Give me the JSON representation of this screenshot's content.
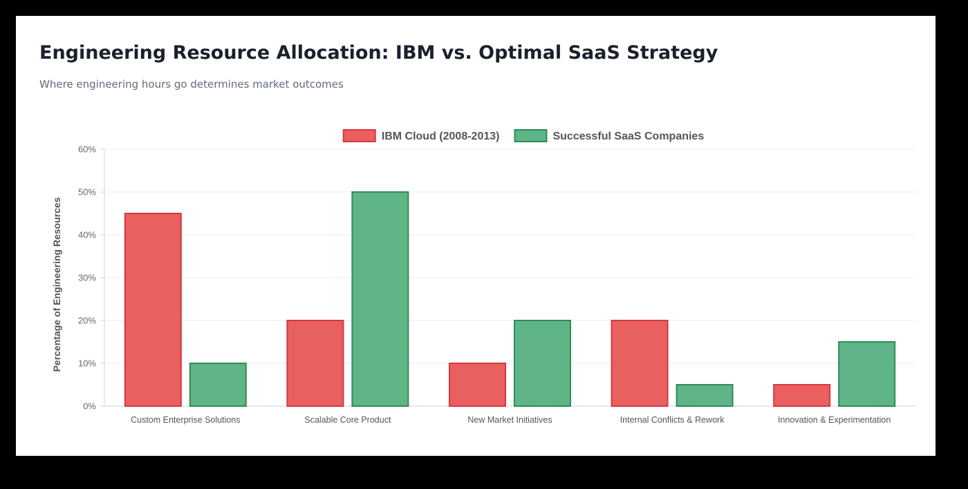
{
  "page": {
    "title": "Engineering Resource Allocation: IBM vs. Optimal SaaS Strategy",
    "subtitle": "Where engineering hours go determines market outcomes"
  },
  "chart_data": {
    "type": "bar",
    "categories": [
      "Custom Enterprise Solutions",
      "Scalable Core Product",
      "New Market Initiatives",
      "Internal Conflicts & Rework",
      "Innovation & Experimentation"
    ],
    "series": [
      {
        "name": "IBM Cloud (2008-2013)",
        "values": [
          45,
          20,
          10,
          20,
          5
        ],
        "color": "#e8605f",
        "border_color": "#d9363e"
      },
      {
        "name": "Successful SaaS Companies",
        "values": [
          10,
          50,
          20,
          5,
          15
        ],
        "color": "#5fb587",
        "border_color": "#2e8b57"
      }
    ],
    "ylabel": "Percentage of Engineering Resources",
    "xlabel": "",
    "ylim": [
      0,
      60
    ],
    "ytick_step": 10,
    "ytick_suffix": "%",
    "legend_position": "top-center",
    "grid": true
  }
}
